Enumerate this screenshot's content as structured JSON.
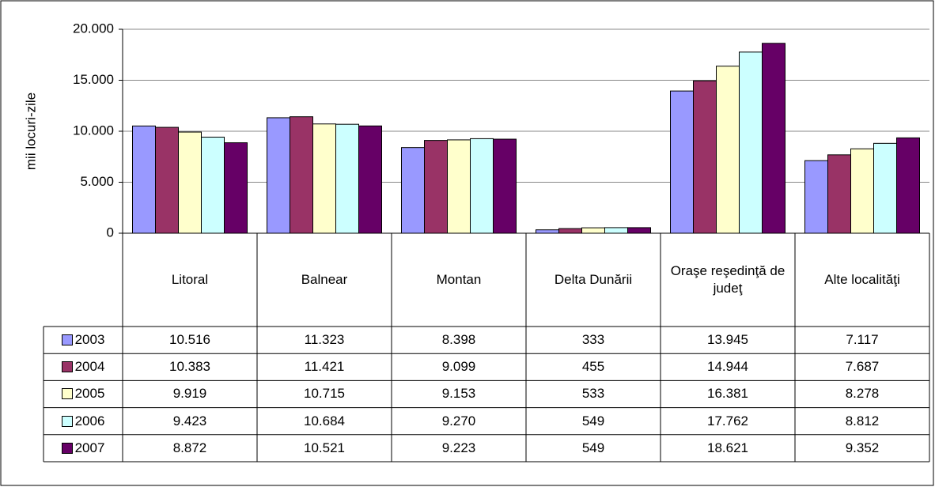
{
  "chart_data": {
    "type": "bar",
    "y_label": "mii locuri-zile",
    "categories": [
      "Litoral",
      "Balnear",
      "Montan",
      "Delta Dunării",
      "Oraşe reşedinţă de judeţ",
      "Alte localităţi"
    ],
    "series": [
      {
        "name": "2003",
        "color": "#9999ff",
        "values": [
          10516,
          11323,
          8398,
          333,
          13945,
          7117
        ],
        "value_labels": [
          "10.516",
          "11.323",
          "8.398",
          "333",
          "13.945",
          "7.117"
        ]
      },
      {
        "name": "2004",
        "color": "#993366",
        "values": [
          10383,
          11421,
          9099,
          455,
          14944,
          7687
        ],
        "value_labels": [
          "10.383",
          "11.421",
          "9.099",
          "455",
          "14.944",
          "7.687"
        ]
      },
      {
        "name": "2005",
        "color": "#ffffcc",
        "values": [
          9919,
          10715,
          9153,
          533,
          16381,
          8278
        ],
        "value_labels": [
          "9.919",
          "10.715",
          "9.153",
          "533",
          "16.381",
          "8.278"
        ]
      },
      {
        "name": "2006",
        "color": "#ccffff",
        "values": [
          9423,
          10684,
          9270,
          549,
          17762,
          8812
        ],
        "value_labels": [
          "9.423",
          "10.684",
          "9.270",
          "549",
          "17.762",
          "8.812"
        ]
      },
      {
        "name": "2007",
        "color": "#660066",
        "values": [
          8872,
          10521,
          9223,
          549,
          18621,
          9352
        ],
        "value_labels": [
          "8.872",
          "10.521",
          "9.223",
          "549",
          "18.621",
          "9.352"
        ]
      }
    ],
    "ylim": [
      0,
      20000
    ],
    "yticks": [
      0,
      {
        "value": 5000,
        "label": "5.000"
      },
      {
        "value": 10000,
        "label": "10.000"
      },
      {
        "value": 15000,
        "label": "15.000"
      },
      {
        "value": 20000,
        "label": "20.000"
      }
    ],
    "grid": true
  }
}
